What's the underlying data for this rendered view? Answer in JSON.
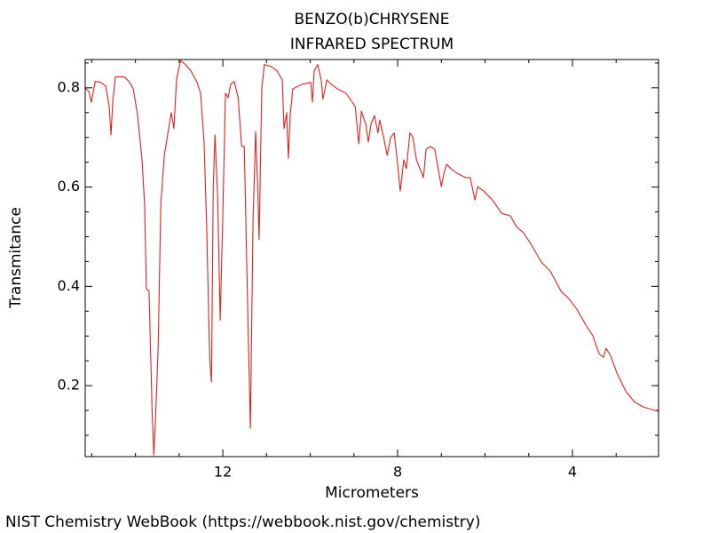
{
  "chart_data": {
    "type": "line",
    "title": "BENZO(b)CHRYSENE",
    "subtitle": "INFRARED SPECTRUM",
    "x_label": "Micrometers",
    "y_label": "Transmitance",
    "source": "NIST Chemistry WebBook (https://webbook.nist.gov/chemistry)",
    "color": "#e02020",
    "xlim": [
      15.15,
      2.03
    ],
    "ylim": [
      0.057,
      0.857
    ],
    "xticks": [
      12,
      8,
      4
    ],
    "xminorticks": [
      15,
      14,
      13,
      11,
      10,
      9,
      7,
      6,
      5,
      3
    ],
    "yticks": [
      0.2,
      0.4,
      0.6,
      0.8
    ],
    "yminorticks": [
      0.1,
      0.15,
      0.25,
      0.3,
      0.35,
      0.45,
      0.5,
      0.55,
      0.65,
      0.7,
      0.75,
      0.85
    ],
    "x": [
      15.15,
      15.07,
      15.01,
      14.92,
      14.8,
      14.68,
      14.6,
      14.56,
      14.52,
      14.46,
      14.25,
      14.15,
      14.05,
      13.95,
      13.85,
      13.79,
      13.75,
      13.69,
      13.62,
      13.58,
      13.54,
      13.48,
      13.42,
      13.34,
      13.24,
      13.18,
      13.12,
      13.06,
      12.97,
      12.87,
      12.73,
      12.59,
      12.51,
      12.43,
      12.37,
      12.3,
      12.26,
      12.22,
      12.18,
      12.12,
      12.06,
      12.0,
      11.94,
      11.88,
      11.82,
      11.74,
      11.65,
      11.57,
      11.51,
      11.43,
      11.37,
      11.31,
      11.25,
      11.21,
      11.17,
      11.11,
      11.05,
      10.9,
      10.76,
      10.64,
      10.6,
      10.54,
      10.5,
      10.46,
      10.4,
      10.19,
      9.99,
      9.95,
      9.91,
      9.83,
      9.75,
      9.71,
      9.62,
      9.52,
      9.38,
      9.18,
      8.97,
      8.89,
      8.83,
      8.73,
      8.67,
      8.61,
      8.53,
      8.45,
      8.41,
      8.32,
      8.24,
      8.16,
      8.08,
      8.0,
      7.94,
      7.86,
      7.8,
      7.72,
      7.65,
      7.57,
      7.49,
      7.41,
      7.35,
      7.25,
      7.15,
      7.09,
      7.0,
      6.94,
      6.88,
      6.78,
      6.64,
      6.44,
      6.34,
      6.23,
      6.17,
      6.03,
      5.83,
      5.62,
      5.42,
      5.28,
      5.12,
      4.95,
      4.71,
      4.51,
      4.26,
      4.1,
      3.9,
      3.7,
      3.53,
      3.39,
      3.29,
      3.23,
      3.13,
      2.98,
      2.78,
      2.58,
      2.38,
      2.03
    ],
    "values": [
      0.8,
      0.793,
      0.771,
      0.813,
      0.811,
      0.804,
      0.762,
      0.705,
      0.771,
      0.822,
      0.822,
      0.813,
      0.798,
      0.744,
      0.655,
      0.565,
      0.395,
      0.391,
      0.153,
      0.06,
      0.135,
      0.279,
      0.565,
      0.664,
      0.718,
      0.75,
      0.718,
      0.816,
      0.855,
      0.848,
      0.834,
      0.811,
      0.789,
      0.691,
      0.52,
      0.252,
      0.207,
      0.601,
      0.705,
      0.583,
      0.332,
      0.547,
      0.789,
      0.78,
      0.807,
      0.813,
      0.78,
      0.682,
      0.682,
      0.35,
      0.114,
      0.529,
      0.712,
      0.619,
      0.494,
      0.798,
      0.847,
      0.843,
      0.834,
      0.816,
      0.718,
      0.75,
      0.658,
      0.744,
      0.798,
      0.807,
      0.811,
      0.771,
      0.834,
      0.847,
      0.816,
      0.777,
      0.816,
      0.807,
      0.798,
      0.789,
      0.762,
      0.687,
      0.753,
      0.727,
      0.691,
      0.727,
      0.744,
      0.709,
      0.735,
      0.7,
      0.664,
      0.7,
      0.709,
      0.646,
      0.592,
      0.655,
      0.637,
      0.709,
      0.7,
      0.655,
      0.637,
      0.619,
      0.676,
      0.682,
      0.676,
      0.646,
      0.601,
      0.628,
      0.646,
      0.637,
      0.628,
      0.619,
      0.619,
      0.574,
      0.601,
      0.592,
      0.574,
      0.547,
      0.542,
      0.52,
      0.508,
      0.485,
      0.449,
      0.431,
      0.39,
      0.377,
      0.354,
      0.323,
      0.3,
      0.264,
      0.257,
      0.275,
      0.261,
      0.225,
      0.189,
      0.167,
      0.157,
      0.148
    ]
  }
}
